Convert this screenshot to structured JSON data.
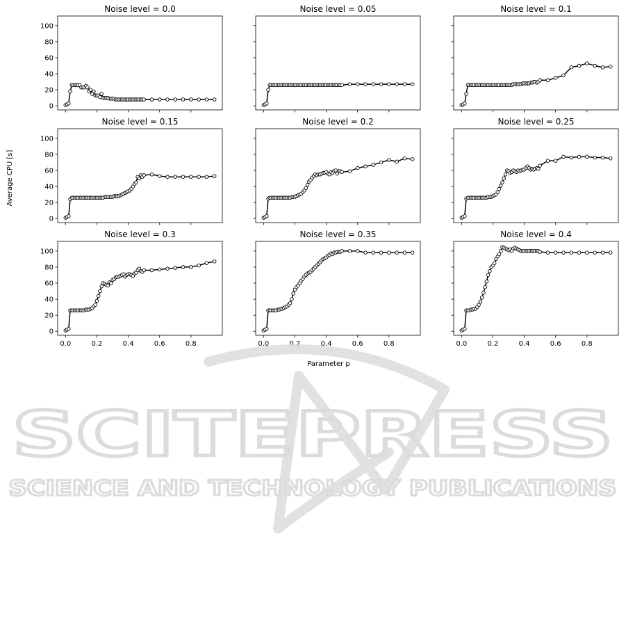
{
  "figure": {
    "xlabel": "Parameter p",
    "ylabel": "Average CPU [s]"
  },
  "watermark": {
    "line1": "SCITEPRESS",
    "line2": "SCIENCE AND TECHNOLOGY PUBLICATIONS"
  },
  "colors": {
    "line": "#000000",
    "marker_face": "#ffffff",
    "watermark": "#dcdcdc"
  },
  "chart_data": [
    {
      "type": "line",
      "title": "Noise level = 0.0",
      "xlim": [
        -0.05,
        1.0
      ],
      "ylim": [
        -5,
        112
      ],
      "xticks": [
        0.0,
        0.2,
        0.4,
        0.6,
        0.8
      ],
      "yticks": [
        0,
        20,
        40,
        60,
        80,
        100
      ],
      "x": [
        0.0,
        0.01,
        0.02,
        0.03,
        0.04,
        0.05,
        0.06,
        0.07,
        0.08,
        0.09,
        0.1,
        0.11,
        0.12,
        0.13,
        0.14,
        0.15,
        0.16,
        0.17,
        0.18,
        0.19,
        0.2,
        0.21,
        0.22,
        0.23,
        0.24,
        0.25,
        0.26,
        0.27,
        0.28,
        0.29,
        0.3,
        0.31,
        0.32,
        0.33,
        0.34,
        0.35,
        0.36,
        0.37,
        0.38,
        0.39,
        0.4,
        0.41,
        0.42,
        0.43,
        0.44,
        0.45,
        0.46,
        0.47,
        0.48,
        0.49,
        0.5,
        0.55,
        0.6,
        0.65,
        0.7,
        0.75,
        0.8,
        0.85,
        0.9,
        0.95
      ],
      "y": [
        1,
        2,
        3,
        18,
        26,
        26,
        26,
        26,
        26,
        26,
        23,
        23,
        23,
        25,
        23,
        18,
        20,
        15,
        18,
        13,
        13,
        13,
        11,
        15,
        10,
        10,
        10,
        10,
        9,
        9,
        9,
        9,
        8,
        8,
        8,
        8,
        8,
        8,
        8,
        8,
        8,
        8,
        8,
        8,
        8,
        8,
        8,
        8,
        8,
        8,
        8,
        8,
        8,
        8,
        8,
        8,
        8,
        8,
        8,
        8
      ]
    },
    {
      "type": "line",
      "title": "Noise level = 0.05",
      "xlim": [
        -0.05,
        1.0
      ],
      "ylim": [
        -5,
        112
      ],
      "xticks": [
        0.0,
        0.2,
        0.4,
        0.6,
        0.8
      ],
      "yticks": [
        0,
        20,
        40,
        60,
        80,
        100
      ],
      "x": [
        0.0,
        0.01,
        0.02,
        0.03,
        0.04,
        0.05,
        0.06,
        0.07,
        0.08,
        0.09,
        0.1,
        0.11,
        0.12,
        0.13,
        0.14,
        0.15,
        0.16,
        0.17,
        0.18,
        0.19,
        0.2,
        0.21,
        0.22,
        0.23,
        0.24,
        0.25,
        0.26,
        0.27,
        0.28,
        0.29,
        0.3,
        0.31,
        0.32,
        0.33,
        0.34,
        0.35,
        0.36,
        0.37,
        0.38,
        0.39,
        0.4,
        0.41,
        0.42,
        0.43,
        0.44,
        0.45,
        0.46,
        0.47,
        0.48,
        0.49,
        0.5,
        0.55,
        0.6,
        0.65,
        0.7,
        0.75,
        0.8,
        0.85,
        0.9,
        0.95
      ],
      "y": [
        1,
        2,
        3,
        20,
        26,
        26,
        26,
        26,
        26,
        26,
        26,
        26,
        26,
        26,
        26,
        26,
        26,
        26,
        26,
        26,
        26,
        26,
        26,
        26,
        26,
        26,
        26,
        26,
        26,
        26,
        26,
        26,
        26,
        26,
        26,
        26,
        26,
        26,
        26,
        26,
        26,
        26,
        26,
        26,
        26,
        26,
        26,
        26,
        26,
        26,
        26,
        27,
        27,
        27,
        27,
        27,
        27,
        27,
        27,
        27
      ]
    },
    {
      "type": "line",
      "title": "Noise level = 0.1",
      "xlim": [
        -0.05,
        1.0
      ],
      "ylim": [
        -5,
        112
      ],
      "xticks": [
        0.0,
        0.2,
        0.4,
        0.6,
        0.8
      ],
      "yticks": [
        0,
        20,
        40,
        60,
        80,
        100
      ],
      "x": [
        0.0,
        0.01,
        0.02,
        0.03,
        0.04,
        0.05,
        0.06,
        0.07,
        0.08,
        0.09,
        0.1,
        0.11,
        0.12,
        0.13,
        0.14,
        0.15,
        0.16,
        0.17,
        0.18,
        0.19,
        0.2,
        0.21,
        0.22,
        0.23,
        0.24,
        0.25,
        0.26,
        0.27,
        0.28,
        0.29,
        0.3,
        0.31,
        0.32,
        0.33,
        0.34,
        0.35,
        0.36,
        0.37,
        0.38,
        0.39,
        0.4,
        0.41,
        0.42,
        0.43,
        0.44,
        0.45,
        0.46,
        0.47,
        0.48,
        0.49,
        0.5,
        0.55,
        0.6,
        0.65,
        0.7,
        0.75,
        0.8,
        0.85,
        0.9,
        0.95
      ],
      "y": [
        1,
        2,
        3,
        15,
        26,
        26,
        26,
        26,
        26,
        26,
        26,
        26,
        26,
        26,
        26,
        26,
        26,
        26,
        26,
        26,
        26,
        26,
        26,
        26,
        26,
        26,
        26,
        26,
        26,
        26,
        26,
        26,
        26,
        27,
        27,
        27,
        27,
        27,
        27,
        28,
        28,
        28,
        28,
        28,
        29,
        29,
        30,
        30,
        29,
        30,
        32,
        32,
        35,
        38,
        48,
        50,
        53,
        50,
        48,
        49
      ]
    },
    {
      "type": "line",
      "title": "Noise level = 0.15",
      "xlim": [
        -0.05,
        1.0
      ],
      "ylim": [
        -5,
        112
      ],
      "xticks": [
        0.0,
        0.2,
        0.4,
        0.6,
        0.8
      ],
      "yticks": [
        0,
        20,
        40,
        60,
        80,
        100
      ],
      "x": [
        0.0,
        0.01,
        0.02,
        0.03,
        0.04,
        0.05,
        0.06,
        0.07,
        0.08,
        0.09,
        0.1,
        0.11,
        0.12,
        0.13,
        0.14,
        0.15,
        0.16,
        0.17,
        0.18,
        0.19,
        0.2,
        0.21,
        0.22,
        0.23,
        0.24,
        0.25,
        0.26,
        0.27,
        0.28,
        0.29,
        0.3,
        0.31,
        0.32,
        0.33,
        0.34,
        0.35,
        0.36,
        0.37,
        0.38,
        0.39,
        0.4,
        0.41,
        0.42,
        0.43,
        0.44,
        0.45,
        0.46,
        0.47,
        0.48,
        0.49,
        0.5,
        0.55,
        0.6,
        0.65,
        0.7,
        0.75,
        0.8,
        0.85,
        0.9,
        0.95
      ],
      "y": [
        1,
        2,
        3,
        24,
        26,
        26,
        26,
        26,
        26,
        26,
        26,
        26,
        26,
        26,
        26,
        26,
        26,
        26,
        26,
        26,
        26,
        26,
        26,
        26,
        26,
        27,
        27,
        27,
        27,
        27,
        27,
        28,
        28,
        28,
        28,
        29,
        30,
        31,
        32,
        33,
        34,
        35,
        37,
        40,
        43,
        45,
        52,
        50,
        54,
        52,
        54,
        55,
        53,
        52,
        52,
        52,
        52,
        52,
        52,
        53
      ]
    },
    {
      "type": "line",
      "title": "Noise level = 0.2",
      "xlim": [
        -0.05,
        1.0
      ],
      "ylim": [
        -5,
        112
      ],
      "xticks": [
        0.0,
        0.2,
        0.4,
        0.6,
        0.8
      ],
      "yticks": [
        0,
        20,
        40,
        60,
        80,
        100
      ],
      "x": [
        0.0,
        0.01,
        0.02,
        0.03,
        0.04,
        0.05,
        0.06,
        0.07,
        0.08,
        0.09,
        0.1,
        0.11,
        0.12,
        0.13,
        0.14,
        0.15,
        0.16,
        0.17,
        0.18,
        0.19,
        0.2,
        0.21,
        0.22,
        0.23,
        0.24,
        0.25,
        0.26,
        0.27,
        0.28,
        0.29,
        0.3,
        0.31,
        0.32,
        0.33,
        0.34,
        0.35,
        0.36,
        0.37,
        0.38,
        0.39,
        0.4,
        0.41,
        0.42,
        0.43,
        0.44,
        0.45,
        0.46,
        0.47,
        0.48,
        0.49,
        0.5,
        0.55,
        0.6,
        0.65,
        0.7,
        0.75,
        0.8,
        0.85,
        0.9,
        0.95
      ],
      "y": [
        1,
        2,
        3,
        25,
        26,
        26,
        26,
        26,
        26,
        26,
        26,
        26,
        26,
        26,
        26,
        26,
        26,
        26,
        27,
        27,
        27,
        28,
        29,
        30,
        31,
        33,
        35,
        38,
        42,
        46,
        48,
        51,
        53,
        55,
        54,
        55,
        55,
        56,
        57,
        57,
        58,
        56,
        55,
        58,
        57,
        59,
        60,
        56,
        59,
        59,
        58,
        59,
        63,
        65,
        67,
        70,
        73,
        71,
        75,
        74
      ]
    },
    {
      "type": "line",
      "title": "Noise level = 0.25",
      "xlim": [
        -0.05,
        1.0
      ],
      "ylim": [
        -5,
        112
      ],
      "xticks": [
        0.0,
        0.2,
        0.4,
        0.6,
        0.8
      ],
      "yticks": [
        0,
        20,
        40,
        60,
        80,
        100
      ],
      "x": [
        0.0,
        0.01,
        0.02,
        0.03,
        0.04,
        0.05,
        0.06,
        0.07,
        0.08,
        0.09,
        0.1,
        0.11,
        0.12,
        0.13,
        0.14,
        0.15,
        0.16,
        0.17,
        0.18,
        0.19,
        0.2,
        0.21,
        0.22,
        0.23,
        0.24,
        0.25,
        0.26,
        0.27,
        0.28,
        0.29,
        0.3,
        0.31,
        0.32,
        0.33,
        0.34,
        0.35,
        0.36,
        0.37,
        0.38,
        0.39,
        0.4,
        0.41,
        0.42,
        0.43,
        0.44,
        0.45,
        0.46,
        0.47,
        0.48,
        0.49,
        0.5,
        0.55,
        0.6,
        0.65,
        0.7,
        0.75,
        0.8,
        0.85,
        0.9,
        0.95
      ],
      "y": [
        1,
        2,
        3,
        25,
        26,
        26,
        26,
        26,
        26,
        26,
        26,
        26,
        26,
        26,
        26,
        26,
        26,
        27,
        27,
        27,
        28,
        29,
        30,
        33,
        37,
        41,
        45,
        50,
        55,
        60,
        59,
        57,
        58,
        60,
        59,
        58,
        60,
        59,
        60,
        61,
        61,
        63,
        65,
        63,
        61,
        62,
        61,
        62,
        63,
        62,
        66,
        72,
        72,
        77,
        76,
        77,
        77,
        76,
        76,
        75
      ]
    },
    {
      "type": "line",
      "title": "Noise level = 0.3",
      "xlim": [
        -0.05,
        1.0
      ],
      "ylim": [
        -5,
        112
      ],
      "xticks": [
        0.0,
        0.2,
        0.4,
        0.6,
        0.8
      ],
      "yticks": [
        0,
        20,
        40,
        60,
        80,
        100
      ],
      "x": [
        0.0,
        0.01,
        0.02,
        0.03,
        0.04,
        0.05,
        0.06,
        0.07,
        0.08,
        0.09,
        0.1,
        0.11,
        0.12,
        0.13,
        0.14,
        0.15,
        0.16,
        0.17,
        0.18,
        0.19,
        0.2,
        0.21,
        0.22,
        0.23,
        0.24,
        0.25,
        0.26,
        0.27,
        0.28,
        0.29,
        0.3,
        0.31,
        0.32,
        0.33,
        0.34,
        0.35,
        0.36,
        0.37,
        0.38,
        0.39,
        0.4,
        0.41,
        0.42,
        0.43,
        0.44,
        0.45,
        0.46,
        0.47,
        0.48,
        0.49,
        0.5,
        0.55,
        0.6,
        0.65,
        0.7,
        0.75,
        0.8,
        0.85,
        0.9,
        0.95
      ],
      "y": [
        1,
        2,
        3,
        26,
        26,
        26,
        26,
        26,
        26,
        26,
        26,
        26,
        26,
        27,
        27,
        27,
        28,
        29,
        31,
        33,
        38,
        44,
        50,
        56,
        60,
        59,
        58,
        57,
        61,
        60,
        64,
        65,
        67,
        68,
        68,
        69,
        70,
        71,
        68,
        70,
        71,
        71,
        70,
        69,
        72,
        73,
        76,
        78,
        75,
        74,
        76,
        76,
        77,
        78,
        79,
        80,
        80,
        82,
        85,
        87
      ]
    },
    {
      "type": "line",
      "title": "Noise level = 0.35",
      "xlim": [
        -0.05,
        1.0
      ],
      "ylim": [
        -5,
        112
      ],
      "xticks": [
        0.0,
        0.2,
        0.4,
        0.6,
        0.8
      ],
      "yticks": [
        0,
        20,
        40,
        60,
        80,
        100
      ],
      "x": [
        0.0,
        0.01,
        0.02,
        0.03,
        0.04,
        0.05,
        0.06,
        0.07,
        0.08,
        0.09,
        0.1,
        0.11,
        0.12,
        0.13,
        0.14,
        0.15,
        0.16,
        0.17,
        0.18,
        0.19,
        0.2,
        0.21,
        0.22,
        0.23,
        0.24,
        0.25,
        0.26,
        0.27,
        0.28,
        0.29,
        0.3,
        0.31,
        0.32,
        0.33,
        0.34,
        0.35,
        0.36,
        0.37,
        0.38,
        0.39,
        0.4,
        0.41,
        0.42,
        0.43,
        0.44,
        0.45,
        0.46,
        0.47,
        0.48,
        0.49,
        0.5,
        0.55,
        0.6,
        0.65,
        0.7,
        0.75,
        0.8,
        0.85,
        0.9,
        0.95
      ],
      "y": [
        1,
        2,
        3,
        26,
        26,
        26,
        26,
        26,
        26,
        27,
        27,
        28,
        28,
        29,
        30,
        31,
        33,
        35,
        40,
        47,
        52,
        55,
        57,
        60,
        63,
        65,
        68,
        70,
        72,
        73,
        74,
        76,
        78,
        80,
        82,
        84,
        86,
        88,
        90,
        91,
        92,
        94,
        95,
        97,
        96,
        98,
        98,
        99,
        99,
        99,
        100,
        100,
        100,
        98,
        98,
        98,
        98,
        98,
        98,
        98
      ]
    },
    {
      "type": "line",
      "title": "Noise level = 0.4",
      "xlim": [
        -0.05,
        1.0
      ],
      "ylim": [
        -5,
        112
      ],
      "xticks": [
        0.0,
        0.2,
        0.4,
        0.6,
        0.8
      ],
      "yticks": [
        0,
        20,
        40,
        60,
        80,
        100
      ],
      "x": [
        0.0,
        0.01,
        0.02,
        0.03,
        0.04,
        0.05,
        0.06,
        0.07,
        0.08,
        0.09,
        0.1,
        0.11,
        0.12,
        0.13,
        0.14,
        0.15,
        0.16,
        0.17,
        0.18,
        0.19,
        0.2,
        0.21,
        0.22,
        0.23,
        0.24,
        0.25,
        0.26,
        0.27,
        0.28,
        0.29,
        0.3,
        0.31,
        0.32,
        0.33,
        0.34,
        0.35,
        0.36,
        0.37,
        0.38,
        0.39,
        0.4,
        0.41,
        0.42,
        0.43,
        0.44,
        0.45,
        0.46,
        0.47,
        0.48,
        0.49,
        0.5,
        0.55,
        0.6,
        0.65,
        0.7,
        0.75,
        0.8,
        0.85,
        0.9,
        0.95
      ],
      "y": [
        1,
        2,
        3,
        26,
        26,
        26,
        27,
        27,
        28,
        28,
        30,
        33,
        37,
        42,
        48,
        55,
        62,
        70,
        75,
        80,
        82,
        85,
        90,
        93,
        96,
        100,
        105,
        104,
        103,
        102,
        101,
        102,
        100,
        103,
        104,
        103,
        102,
        101,
        100,
        100,
        100,
        100,
        100,
        100,
        100,
        100,
        100,
        100,
        100,
        100,
        99,
        98,
        98,
        98,
        98,
        98,
        98,
        98,
        98,
        98
      ]
    }
  ]
}
